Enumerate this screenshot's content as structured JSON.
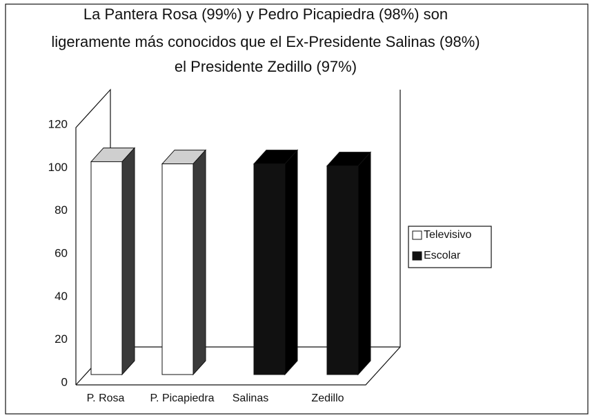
{
  "chart_data": {
    "type": "bar3d",
    "title": [
      "La Pantera Rosa (99%) y Pedro Picapiedra (98%) son",
      "ligeramente más conocidos que el Ex-Presidente Salinas (98%)",
      "el Presidente Zedillo (97%)"
    ],
    "categories": [
      "P. Rosa",
      "P. Picapiedra",
      "Salinas",
      "Zedillo"
    ],
    "series": [
      {
        "name": "Televisivo",
        "color": "#ffffff",
        "values": [
          99,
          98,
          null,
          null
        ]
      },
      {
        "name": "Escolar",
        "color": "#111111",
        "values": [
          null,
          null,
          98,
          97
        ]
      }
    ],
    "ylim": [
      0,
      120
    ],
    "yticks": [
      0,
      20,
      40,
      60,
      80,
      100,
      120
    ],
    "grid": false,
    "legend": "right"
  }
}
